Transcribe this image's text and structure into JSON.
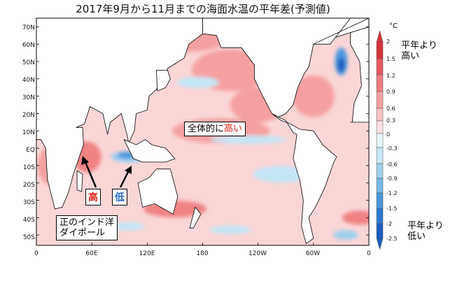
{
  "title": "2017年9月から11月までの海面水温の平年差(予測値)",
  "y_ticks": [
    "70N",
    "60N",
    "50N",
    "40N",
    "30N",
    "20N",
    "10N",
    "EQ",
    "10S",
    "20S",
    "30S",
    "40S",
    "50S"
  ],
  "x_ticks": [
    "0",
    "60E",
    "120E",
    "180",
    "120W",
    "60W",
    "0"
  ],
  "colorbar": {
    "unit": "°C",
    "ticks": [
      "2",
      "1.5",
      "1.2",
      "0.9",
      "0.6",
      "0.3",
      "0",
      "-0.3",
      "-0.6",
      "-0.9",
      "-1.2",
      "-1.5",
      "-2",
      "-2.5"
    ],
    "colors": [
      "#d9323a",
      "#e9595d",
      "#f07d80",
      "#f5a0a2",
      "#f9c2c3",
      "#fde0e1",
      "#e4f6fb",
      "#c4e6f5",
      "#9dd0ef",
      "#74b7e6",
      "#4a98dc",
      "#2a78d0",
      "#1b5cc1"
    ],
    "high_label_line1": "平年より",
    "high_label_line2": "高い",
    "low_label_line1": "平年より",
    "low_label_line2": "低い"
  },
  "annotations": {
    "overall_prefix": "全体的に",
    "overall_highlight": "高い",
    "iod_high": "高",
    "iod_low": "低",
    "iod_line1": "正のインド洋",
    "iod_line2": "ダイポール"
  },
  "map_colors": {
    "ocean_base": "#fbd6d7",
    "warm": "#f5a0a2",
    "warmer": "#ef8285",
    "warmest": "#e0474b",
    "cool": "#c4e6f5",
    "cooler": "#9dd0ef",
    "coolest": "#4a98dc",
    "deepest": "#1b5cc1",
    "land": "#ffffff",
    "coast": "#000000"
  }
}
